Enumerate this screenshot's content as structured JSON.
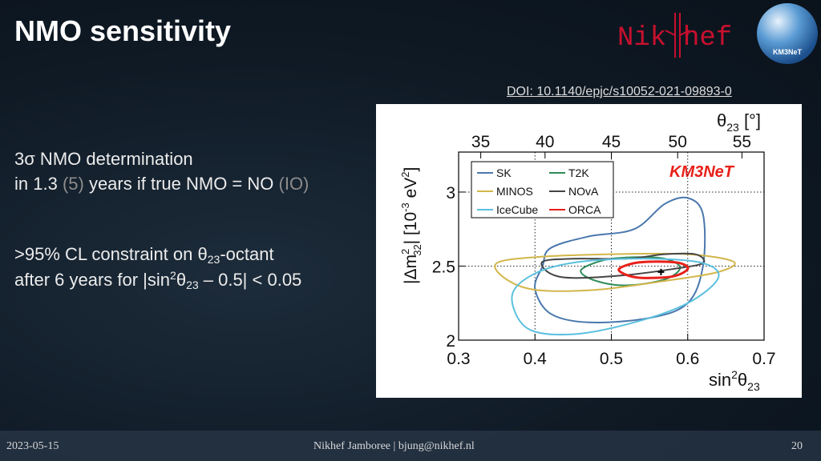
{
  "header": {
    "title": "NMO sensitivity",
    "logo_left": "Nik",
    "logo_right": "hef",
    "badge": "KM3NeT"
  },
  "doi": "DOI: 10.1140/epjc/s10052-021-09893-0",
  "bullets": [
    {
      "line1": [
        "3σ NMO determination"
      ],
      "line2": [
        "in 1.3 ",
        "(5)",
        " years if true NMO = NO ",
        "(IO)"
      ]
    },
    {
      "line1": [
        ">95% CL constraint on θ",
        "23",
        "-octant"
      ],
      "line2": [
        "after 6 years for |sin",
        "2",
        "θ",
        "23",
        " – 0.5| < 0.05"
      ]
    }
  ],
  "figure": {
    "type": "contour",
    "brand": "KM3NeT",
    "top_axis_label": [
      "θ",
      "23",
      " [°]"
    ],
    "x_label": [
      "sin",
      "2",
      "θ",
      "23"
    ],
    "y_label": [
      "|Δm",
      "2",
      "32",
      "| [10",
      "-3",
      " eV",
      "2",
      "]"
    ],
    "xlim": [
      0.3,
      0.7
    ],
    "ylim": [
      2,
      3.27
    ],
    "xticks": [
      0.3,
      0.4,
      0.5,
      0.6,
      0.7
    ],
    "yticks": [
      2,
      2.5,
      3
    ],
    "top_ticks": [
      35,
      40,
      45,
      50,
      55
    ],
    "grid": true,
    "series": [
      {
        "name": "SK",
        "color": "#4a78ad",
        "x": [
          0.41,
          0.42,
          0.47,
          0.53,
          0.57,
          0.6,
          0.62,
          0.62,
          0.6,
          0.55,
          0.47,
          0.42,
          0.4
        ],
        "y": [
          2.5,
          2.62,
          2.7,
          2.75,
          2.92,
          2.96,
          2.85,
          2.5,
          2.25,
          2.15,
          2.12,
          2.18,
          2.35
        ]
      },
      {
        "name": "T2K",
        "color": "#2e8b57",
        "x": [
          0.46,
          0.49,
          0.53,
          0.57,
          0.59,
          0.57,
          0.52,
          0.48
        ],
        "y": [
          2.47,
          2.54,
          2.56,
          2.55,
          2.49,
          2.41,
          2.37,
          2.4
        ]
      },
      {
        "name": "MINOS",
        "color": "#d2b64a",
        "x": [
          0.35,
          0.4,
          0.5,
          0.6,
          0.66,
          0.64,
          0.57,
          0.48,
          0.4,
          0.36
        ],
        "y": [
          2.52,
          2.56,
          2.58,
          2.58,
          2.53,
          2.46,
          2.4,
          2.34,
          2.34,
          2.42
        ]
      },
      {
        "name": "NOvA",
        "color": "#444444",
        "x": [
          0.41,
          0.45,
          0.52,
          0.57,
          0.61,
          0.62,
          0.58,
          0.52,
          0.45,
          0.42
        ],
        "y": [
          2.53,
          2.55,
          2.55,
          2.58,
          2.58,
          2.52,
          2.48,
          2.44,
          2.42,
          2.45
        ]
      },
      {
        "name": "IceCube",
        "color": "#5bc0de",
        "x": [
          0.37,
          0.4,
          0.46,
          0.55,
          0.62,
          0.64,
          0.6,
          0.53,
          0.45,
          0.39
        ],
        "y": [
          2.3,
          2.45,
          2.53,
          2.55,
          2.52,
          2.42,
          2.25,
          2.12,
          2.04,
          2.08
        ]
      },
      {
        "name": "ORCA",
        "color": "#e8201a",
        "x": [
          0.51,
          0.53,
          0.56,
          0.59,
          0.6,
          0.58,
          0.54,
          0.52
        ],
        "y": [
          2.48,
          2.52,
          2.53,
          2.52,
          2.48,
          2.43,
          2.42,
          2.44
        ]
      }
    ],
    "best_fit": {
      "x": 0.565,
      "y": 2.46
    }
  },
  "footer": {
    "date": "2023-05-15",
    "center": "Nikhef Jamboree | bjung@nikhef.nl",
    "page": "20"
  }
}
